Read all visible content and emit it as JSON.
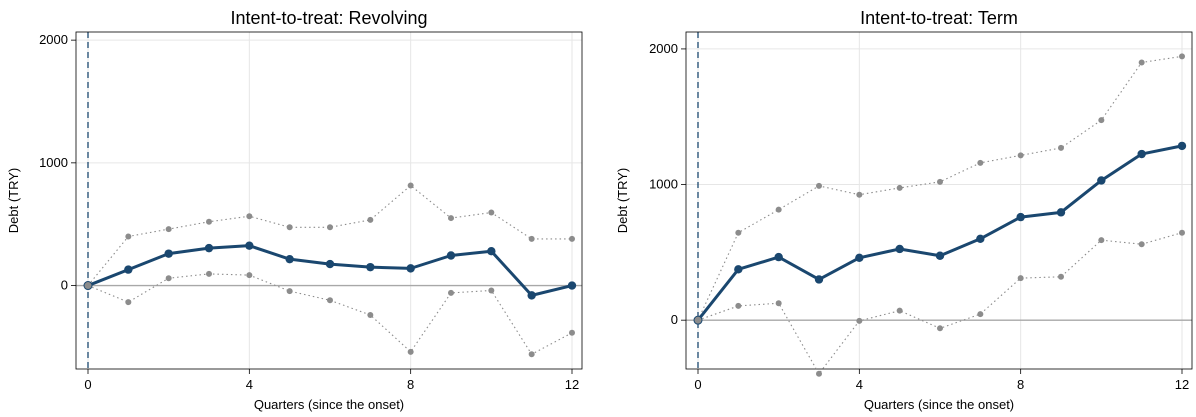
{
  "colors": {
    "point_estimate": "#1a476f",
    "confidence_band": "#8c8c8c",
    "zero_line": "#a8a8a8",
    "onset_line": "#1a476f",
    "grid": "#e6e6e6"
  },
  "chart_data": [
    {
      "type": "line",
      "title": "Intent-to-treat: Revolving",
      "xlabel": "Quarters (since the onset)",
      "ylabel": "Debt (TRY)",
      "xlim": [
        0,
        12
      ],
      "ylim": [
        -680,
        2050
      ],
      "xticks": [
        0,
        4,
        8,
        12
      ],
      "yticks": [
        0,
        1000,
        2000
      ],
      "grid": true,
      "reference_lines": {
        "x": 0,
        "y": 0
      },
      "x": [
        0,
        1,
        2,
        3,
        4,
        5,
        6,
        7,
        8,
        9,
        10,
        11,
        12
      ],
      "series": [
        {
          "role": "estimate",
          "style": "solid",
          "values": [
            0,
            130,
            260,
            305,
            325,
            215,
            175,
            150,
            140,
            245,
            280,
            -80,
            0
          ]
        },
        {
          "role": "upper_ci",
          "style": "dotted",
          "values": [
            0,
            400,
            460,
            520,
            565,
            475,
            475,
            535,
            815,
            550,
            595,
            380,
            380
          ]
        },
        {
          "role": "lower_ci",
          "style": "dotted",
          "values": [
            0,
            -135,
            60,
            95,
            85,
            -45,
            -120,
            -240,
            -540,
            -60,
            -40,
            -560,
            -385
          ]
        }
      ]
    },
    {
      "type": "line",
      "title": "Intent-to-treat: Term",
      "xlabel": "Quarters (since the onset)",
      "ylabel": "Debt (TRY)",
      "xlim": [
        0,
        12
      ],
      "ylim": [
        -360,
        2110
      ],
      "xticks": [
        0,
        4,
        8,
        12
      ],
      "yticks": [
        0,
        1000,
        2000
      ],
      "grid": true,
      "reference_lines": {
        "x": 0,
        "y": 0
      },
      "x": [
        0,
        1,
        2,
        3,
        4,
        5,
        6,
        7,
        8,
        9,
        10,
        11,
        12
      ],
      "series": [
        {
          "role": "estimate",
          "style": "solid",
          "values": [
            0,
            375,
            465,
            300,
            460,
            525,
            475,
            600,
            760,
            795,
            1030,
            1225,
            1285
          ]
        },
        {
          "role": "upper_ci",
          "style": "dotted",
          "values": [
            0,
            645,
            815,
            990,
            925,
            975,
            1020,
            1160,
            1215,
            1270,
            1475,
            1900,
            1945
          ]
        },
        {
          "role": "lower_ci",
          "style": "dotted",
          "values": [
            0,
            105,
            125,
            -395,
            -5,
            70,
            -60,
            45,
            310,
            320,
            590,
            560,
            645
          ]
        }
      ]
    }
  ]
}
